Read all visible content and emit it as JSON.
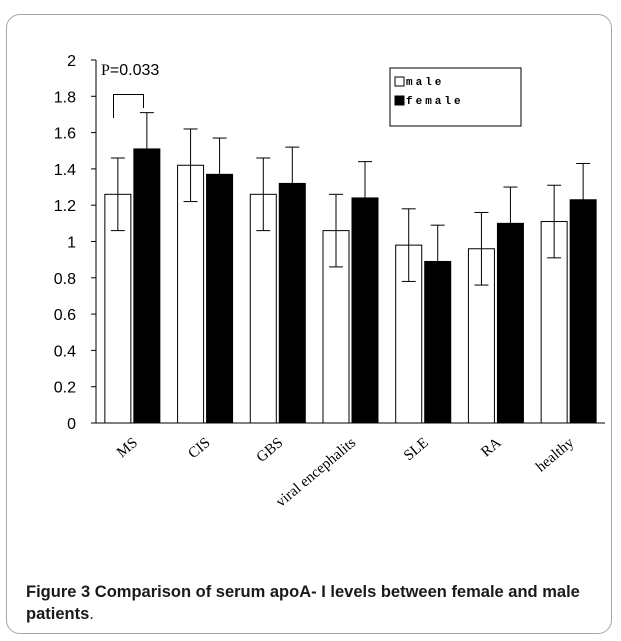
{
  "chart_data": {
    "type": "bar",
    "categories": [
      "MS",
      "CIS",
      "GBS",
      "viral encephalits",
      "SLE",
      "RA",
      "healthy"
    ],
    "series": [
      {
        "name": "male",
        "color": "#ffffff",
        "values": [
          1.26,
          1.42,
          1.26,
          1.06,
          0.98,
          0.96,
          1.11
        ],
        "errors": [
          0.2,
          0.2,
          0.2,
          0.2,
          0.2,
          0.2,
          0.2
        ]
      },
      {
        "name": "female",
        "color": "#000000",
        "values": [
          1.51,
          1.37,
          1.32,
          1.24,
          0.89,
          1.1,
          1.23
        ],
        "errors": [
          0.2,
          0.2,
          0.2,
          0.2,
          0.2,
          0.2,
          0.2
        ]
      }
    ],
    "ylim": [
      0,
      2
    ],
    "yticks": [
      "0",
      "0.2",
      "0.4",
      "0.6",
      "0.8",
      "1",
      "1.2",
      "1.4",
      "1.6",
      "1.8",
      "2"
    ],
    "legend_position": "top-right",
    "annotation": {
      "prefix": "P",
      "value": "=0.033",
      "category": "MS"
    },
    "grid": false
  },
  "caption": {
    "label": "Figure 3",
    "text": " Comparison of serum apoA- I levels between female and male patients",
    "end": "."
  }
}
